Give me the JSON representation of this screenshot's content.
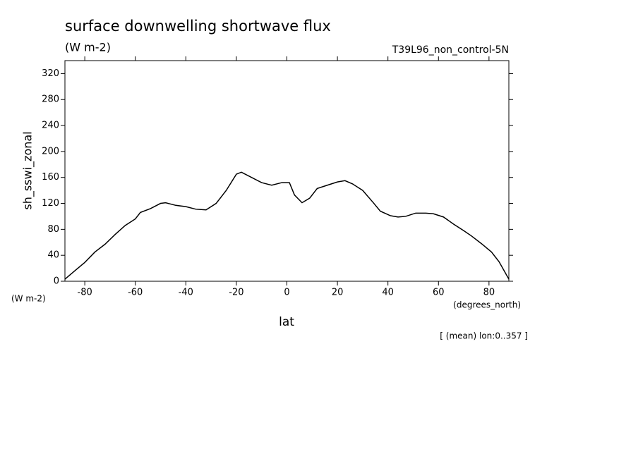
{
  "chart_data": {
    "type": "line",
    "title": "surface downwelling shortwave flux",
    "subtitle": "(W m-2)",
    "annotation": "T39L96_non_control-5N",
    "y_label": "sh_sswi_zonal",
    "y_units": "(W m-2)",
    "x_label": "lat",
    "x_units": "(degrees_north)",
    "note": "[ (mean) lon:0..357 ]",
    "x": [
      -87.9,
      -84,
      -80,
      -76,
      -72,
      -68,
      -64,
      -60,
      -58,
      -54,
      -50,
      -48,
      -44,
      -40,
      -36,
      -32,
      -28,
      -24,
      -20,
      -18,
      -14,
      -10,
      -6,
      -2,
      1,
      3,
      6,
      9,
      12,
      16,
      20,
      23,
      26,
      30,
      34,
      37,
      41,
      44,
      47,
      51,
      55,
      58,
      62,
      66,
      70,
      73,
      77,
      81,
      84,
      87.9
    ],
    "series": [
      {
        "name": "sh_sswi_zonal",
        "color": "#000000",
        "values": [
          3,
          16,
          29,
          45,
          57,
          72,
          86,
          96,
          106,
          112,
          120,
          121,
          117,
          115,
          111,
          110,
          120,
          140,
          165,
          168,
          160,
          152,
          148,
          152,
          152,
          133,
          121,
          128,
          143,
          148,
          153,
          155,
          150,
          140,
          122,
          108,
          101,
          99,
          100,
          105,
          105,
          104,
          99,
          88,
          78,
          70,
          58,
          45,
          30,
          3
        ]
      }
    ],
    "xlim": [
      -87.86,
      87.86
    ],
    "ylim": [
      0,
      340
    ],
    "xticks": [
      -80,
      -60,
      -40,
      -20,
      0,
      20,
      40,
      60,
      80
    ],
    "yticks": [
      0,
      40,
      80,
      120,
      160,
      200,
      240,
      280,
      320
    ]
  }
}
